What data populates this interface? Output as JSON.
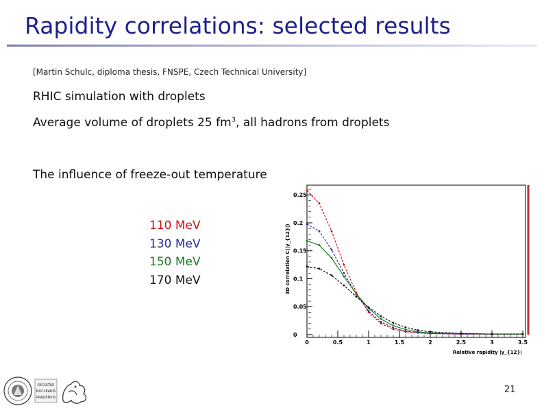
{
  "slide": {
    "title": "Rapidity correlations: selected results",
    "source": "[Martin Schulc, diploma thesis, FNSPE, Czech Technical University]",
    "line1": "RHIC simulation with droplets",
    "line2_pre": "Average volume of droplets 25 fm",
    "line2_sup": "3",
    "line2_post": ", all hadrons from droplets",
    "line3": "The influence of freeze-out temperature",
    "page_number": "21",
    "logo_text": [
      "FACULTAS",
      "NUCLEARIS",
      "PRAGENSIS"
    ]
  },
  "legend": [
    {
      "label": "110 MeV",
      "color": "#cc1111"
    },
    {
      "label": "130 MeV",
      "color": "#2a2a9a"
    },
    {
      "label": "150 MeV",
      "color": "#1a7a1a"
    },
    {
      "label": "170 MeV",
      "color": "#111111"
    }
  ],
  "chart_data": {
    "type": "line",
    "xlabel": "Relative rapidity |y_{12}|",
    "ylabel": "3D correlation C(|y_{12}|)",
    "xlim": [
      0,
      3.5
    ],
    "ylim": [
      0,
      0.265
    ],
    "x_ticks": [
      "0",
      "0.5",
      "1",
      "1.5",
      "2",
      "2.5",
      "3",
      "3.5"
    ],
    "y_ticks": [
      "0",
      "0.05",
      "0.1",
      "0.15",
      "0.2",
      "0.25"
    ],
    "series": [
      {
        "name": "110 MeV",
        "color": "#cc1111",
        "x": [
          0,
          0.2,
          0.4,
          0.6,
          0.8,
          1.0,
          1.2,
          1.4,
          1.6,
          1.8,
          2.0,
          2.5,
          3.0,
          3.5
        ],
        "y": [
          0.258,
          0.235,
          0.185,
          0.125,
          0.075,
          0.04,
          0.02,
          0.01,
          0.005,
          0.003,
          0.002,
          0.001,
          0.001,
          0.001
        ]
      },
      {
        "name": "130 MeV",
        "color": "#2a2a9a",
        "x": [
          0,
          0.2,
          0.4,
          0.6,
          0.8,
          1.0,
          1.2,
          1.4,
          1.6,
          1.8,
          2.0,
          2.5,
          3.0,
          3.5
        ],
        "y": [
          0.198,
          0.185,
          0.152,
          0.11,
          0.072,
          0.042,
          0.023,
          0.012,
          0.006,
          0.004,
          0.002,
          0.001,
          0.001,
          0.001
        ]
      },
      {
        "name": "150 MeV",
        "color": "#1a7a1a",
        "x": [
          0,
          0.2,
          0.4,
          0.6,
          0.8,
          1.0,
          1.2,
          1.4,
          1.6,
          1.8,
          2.0,
          2.5,
          3.0,
          3.5
        ],
        "y": [
          0.168,
          0.16,
          0.137,
          0.104,
          0.073,
          0.047,
          0.028,
          0.016,
          0.009,
          0.005,
          0.003,
          0.002,
          0.001,
          0.001
        ]
      },
      {
        "name": "170 MeV",
        "color": "#111111",
        "x": [
          0,
          0.2,
          0.4,
          0.6,
          0.8,
          1.0,
          1.2,
          1.4,
          1.6,
          1.8,
          2.0,
          2.5,
          3.0,
          3.5
        ],
        "y": [
          0.122,
          0.118,
          0.106,
          0.088,
          0.068,
          0.049,
          0.033,
          0.021,
          0.013,
          0.008,
          0.005,
          0.002,
          0.001,
          0.001
        ]
      }
    ]
  }
}
